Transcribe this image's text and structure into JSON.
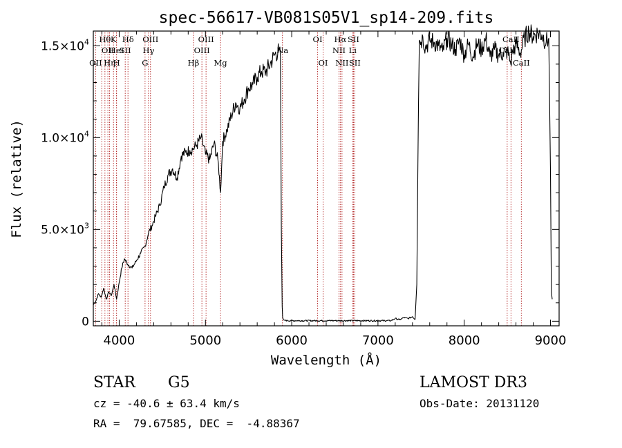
{
  "chart_data": {
    "type": "line",
    "title": "spec-56617-VB081S05V1_sp14-209.fits",
    "xlabel": "Wavelength (Å)",
    "ylabel": "Flux (relative)",
    "xlim": [
      3700,
      9100
    ],
    "ylim": [
      -250,
      15800
    ],
    "x_ticks": [
      {
        "value": 4000,
        "label": "4000"
      },
      {
        "value": 5000,
        "label": "5000"
      },
      {
        "value": 6000,
        "label": "6000"
      },
      {
        "value": 7000,
        "label": "7000"
      },
      {
        "value": 8000,
        "label": "8000"
      },
      {
        "value": 9000,
        "label": "9000"
      }
    ],
    "y_ticks": [
      {
        "value": 0,
        "mantissa": "0",
        "exponent": ""
      },
      {
        "value": 5000,
        "mantissa": "5.0×10",
        "exponent": "3"
      },
      {
        "value": 10000,
        "mantissa": "1.0×10",
        "exponent": "4"
      },
      {
        "value": 15000,
        "mantissa": "1.5×10",
        "exponent": "4"
      }
    ],
    "series": [
      {
        "name": "flux",
        "x": [
          3700,
          3730,
          3760,
          3790,
          3820,
          3850,
          3880,
          3910,
          3940,
          3970,
          4000,
          4030,
          4060,
          4100,
          4150,
          4200,
          4250,
          4300,
          4340,
          4380,
          4420,
          4470,
          4520,
          4570,
          4620,
          4670,
          4720,
          4770,
          4820,
          4861,
          4900,
          4950,
          5000,
          5050,
          5100,
          5150,
          5175,
          5200,
          5250,
          5300,
          5350,
          5400,
          5450,
          5500,
          5550,
          5600,
          5650,
          5700,
          5750,
          5800,
          5850,
          5870,
          5880,
          5890,
          5895,
          5905,
          5920,
          5950,
          6000,
          6500,
          7000,
          7150,
          7200,
          7250,
          7300,
          7350,
          7400,
          7430,
          7450,
          7470,
          7480,
          7500,
          7520,
          7550,
          7600,
          7650,
          7700,
          7750,
          7800,
          7850,
          7900,
          7950,
          8000,
          8050,
          8100,
          8150,
          8200,
          8250,
          8300,
          8350,
          8400,
          8450,
          8500,
          8540,
          8560,
          8600,
          8650,
          8700,
          8750,
          8800,
          8850,
          8900,
          8950,
          8980,
          9000,
          9010,
          9020
        ],
        "y": [
          900,
          1100,
          1500,
          1300,
          1800,
          1200,
          1600,
          1400,
          2000,
          1200,
          2100,
          2900,
          3400,
          3100,
          2900,
          3300,
          3700,
          4100,
          4800,
          5200,
          5700,
          6300,
          7300,
          8000,
          8300,
          7800,
          9000,
          9200,
          9300,
          9400,
          9600,
          10000,
          9100,
          8800,
          9700,
          8600,
          7000,
          9800,
          10400,
          11200,
          11900,
          11600,
          12100,
          12700,
          12900,
          13300,
          13600,
          13600,
          14000,
          14500,
          14700,
          14400,
          5000,
          800,
          200,
          80,
          50,
          30,
          30,
          30,
          30,
          30,
          150,
          80,
          200,
          150,
          250,
          100,
          2000,
          12000,
          15300,
          15200,
          15500,
          14900,
          15300,
          15200,
          15000,
          14700,
          15400,
          15100,
          14800,
          15300,
          14500,
          15100,
          14400,
          15100,
          14800,
          15400,
          14400,
          14800,
          14500,
          14600,
          14700,
          14000,
          14700,
          15100,
          14600,
          15400,
          15800,
          15500,
          15700,
          15600,
          15200,
          15400,
          8200,
          1600,
          1200
        ]
      }
    ],
    "lines": [
      {
        "wl": 3727,
        "row": 2,
        "label": "OII"
      },
      {
        "wl": 3798,
        "row": 2,
        "label": ""
      },
      {
        "wl": 3835,
        "row": 0,
        "label": "Hθ"
      },
      {
        "wl": 3869,
        "row": 1,
        "label": "OII"
      },
      {
        "wl": 3889,
        "row": 2,
        "label": "Hη"
      },
      {
        "wl": 3934,
        "row": 0,
        "label": "K"
      },
      {
        "wl": 3969,
        "row": 1,
        "label": "HeI"
      },
      {
        "wl": 3970,
        "row": 2,
        "label": "H"
      },
      {
        "wl": 4070,
        "row": 1,
        "label": "SII"
      },
      {
        "wl": 4102,
        "row": 0,
        "label": "Hδ"
      },
      {
        "wl": 4300,
        "row": 2,
        "label": "G"
      },
      {
        "wl": 4340,
        "row": 1,
        "label": "Hγ"
      },
      {
        "wl": 4363,
        "row": 0,
        "label": "OIII"
      },
      {
        "wl": 4861,
        "row": 2,
        "label": "Hβ"
      },
      {
        "wl": 4959,
        "row": 1,
        "label": "OIII"
      },
      {
        "wl": 5007,
        "row": 0,
        "label": "OIII"
      },
      {
        "wl": 5175,
        "row": 2,
        "label": "Mg"
      },
      {
        "wl": 5893,
        "row": 1,
        "label": "Na"
      },
      {
        "wl": 6300,
        "row": 0,
        "label": "OI"
      },
      {
        "wl": 6364,
        "row": 2,
        "label": "OI"
      },
      {
        "wl": 6548,
        "row": 1,
        "label": "NII"
      },
      {
        "wl": 6563,
        "row": 0,
        "label": "Hα"
      },
      {
        "wl": 6583,
        "row": 2,
        "label": "NII"
      },
      {
        "wl": 6707,
        "row": 1,
        "label": "Li"
      },
      {
        "wl": 6716,
        "row": 0,
        "label": "SII"
      },
      {
        "wl": 6731,
        "row": 2,
        "label": "SII"
      },
      {
        "wl": 8498,
        "row": 1,
        "label": "CaII"
      },
      {
        "wl": 8542,
        "row": 0,
        "label": "CaII"
      },
      {
        "wl": 8662,
        "row": 2,
        "label": "CaII"
      }
    ]
  },
  "info": {
    "class_label": "STAR",
    "subclass": "G5",
    "survey": "LAMOST DR3",
    "redshift": "cz = -40.6 ± 63.4 km/s",
    "obs_date": "Obs-Date: 20131120",
    "coords": "RA =  79.67585, DEC =  -4.88367"
  },
  "colors": {
    "axis": "#000000",
    "spectrum": "#000000",
    "line_markers": "#b22222",
    "background": "#ffffff"
  }
}
